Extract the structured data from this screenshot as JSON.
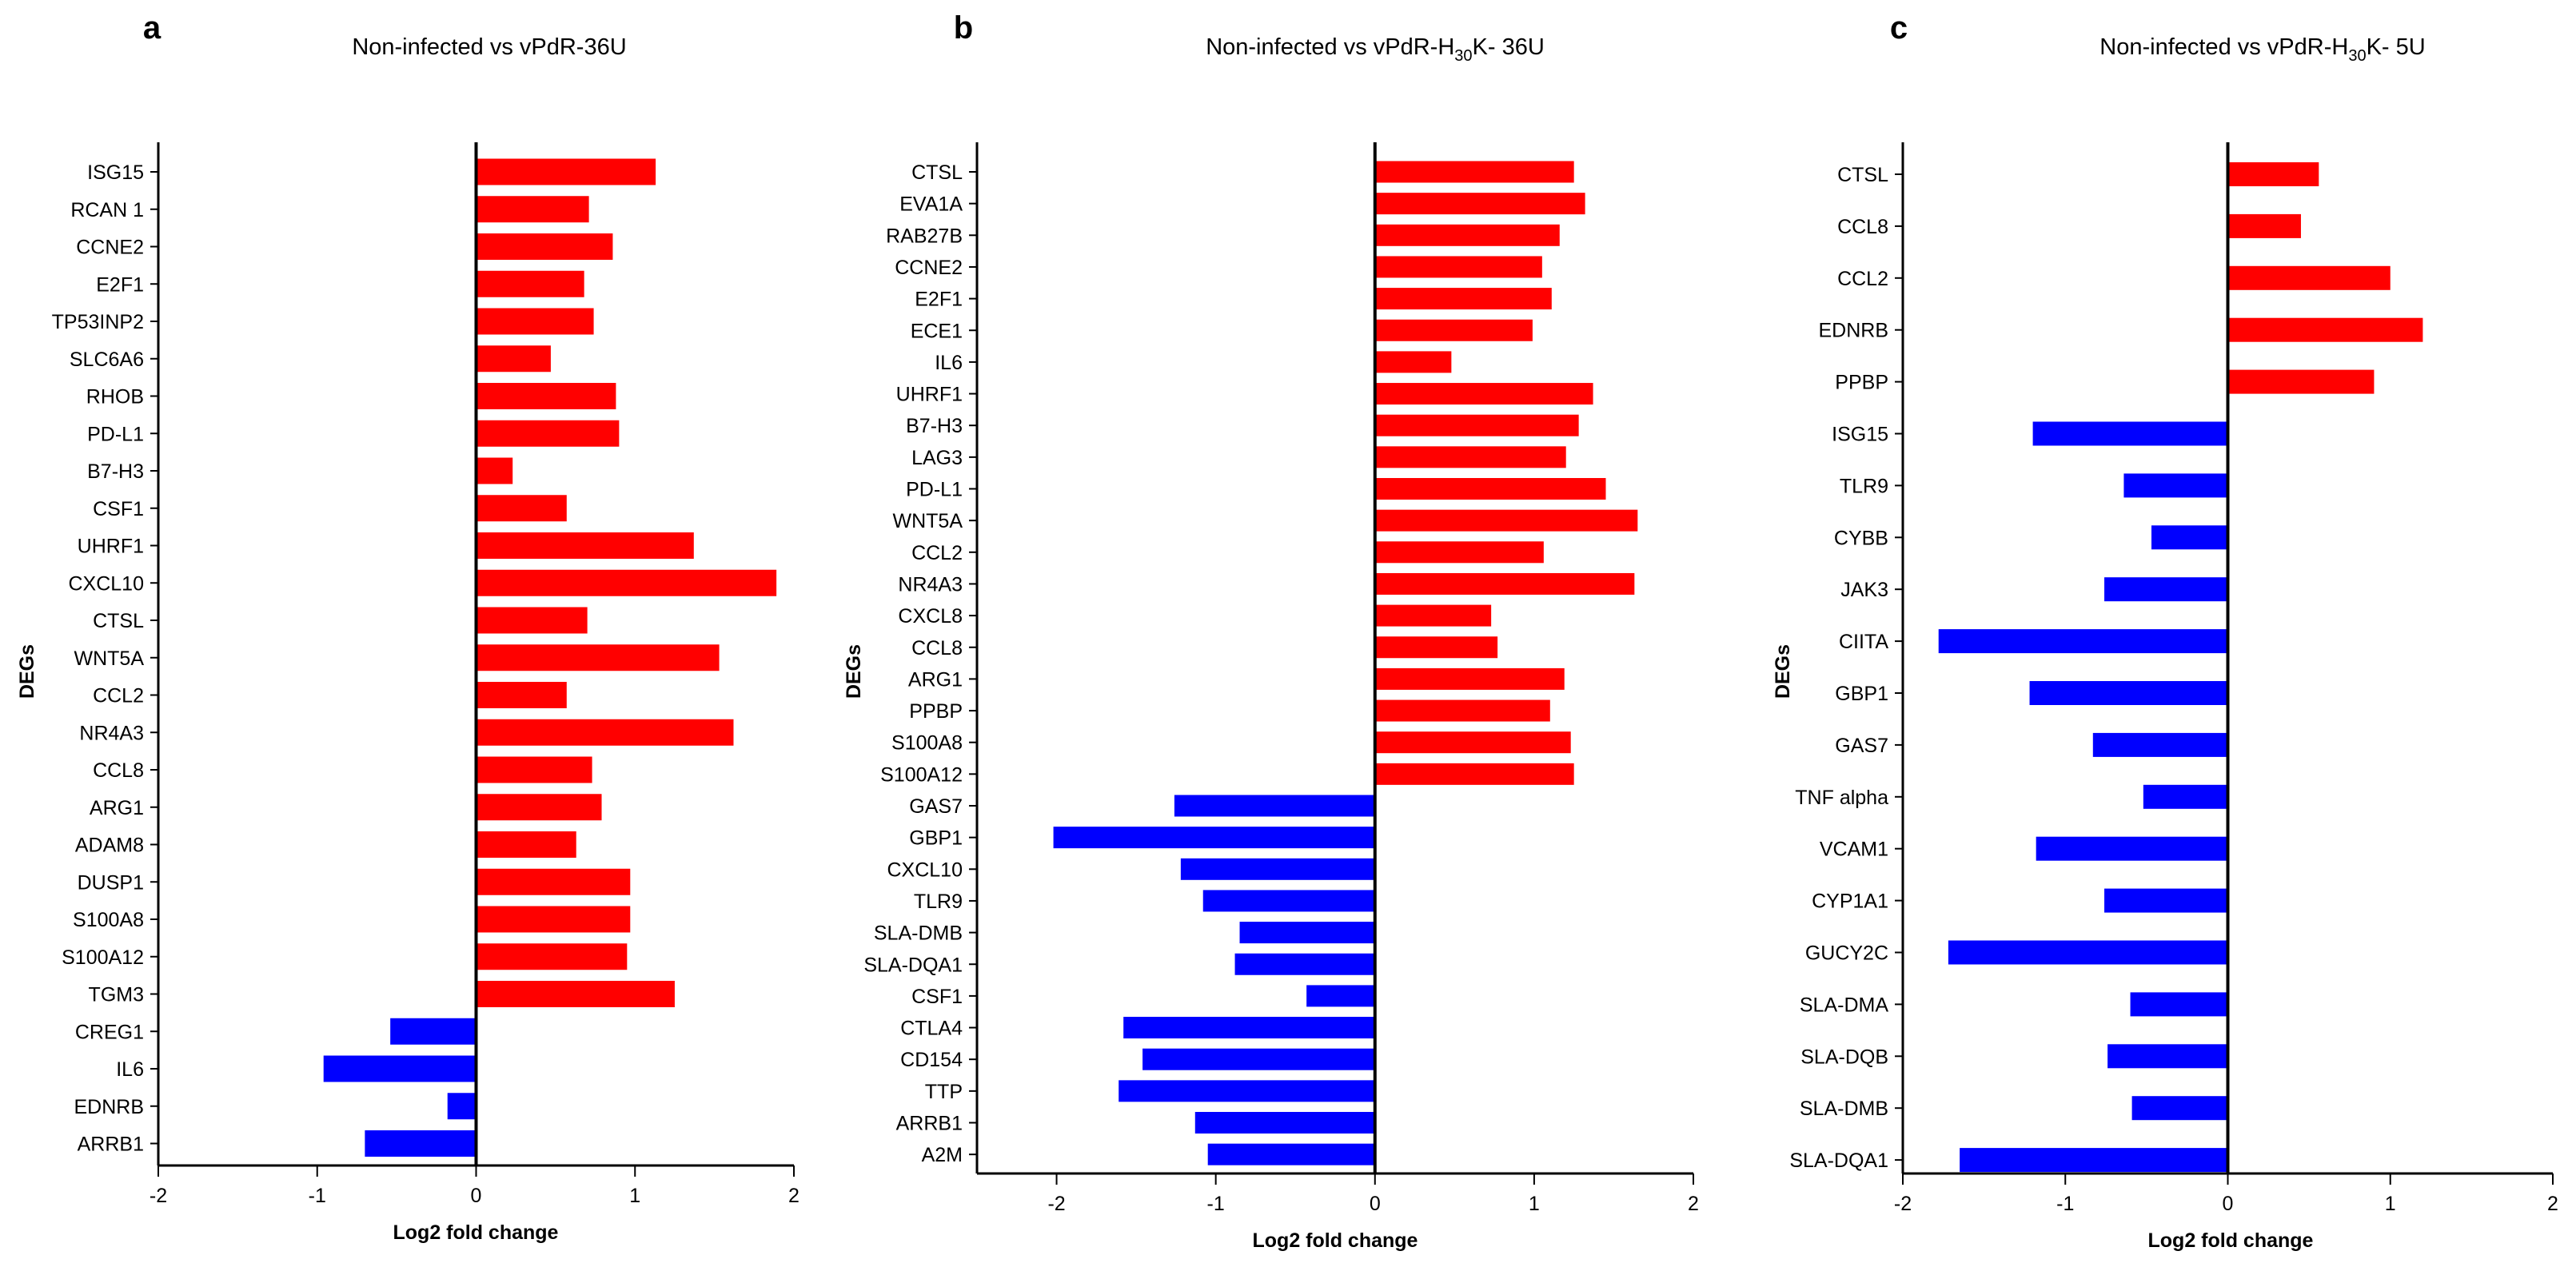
{
  "figure": {
    "panels": [
      "a",
      "b",
      "c"
    ]
  },
  "colors": {
    "positive": "#ff0000",
    "negative": "#0000ff",
    "axis": "#000000"
  },
  "chart_data": [
    {
      "type": "bar",
      "orientation": "horizontal",
      "panel_label": "a",
      "title": "Non-infected vs vPdR-36U",
      "xlabel": "Log2 fold change",
      "ylabel": "DEGs",
      "xlim": [
        -2,
        2
      ],
      "xticks": [
        -2,
        -1,
        0,
        1,
        2
      ],
      "grid": false,
      "categories": [
        "ISG15",
        "RCAN 1",
        "CCNE2",
        "E2F1",
        "TP53INP2",
        "SLC6A6",
        "RHOB",
        "PD-L1",
        "B7-H3",
        "CSF1",
        "UHRF1",
        "CXCL10",
        "CTSL",
        "WNT5A",
        "CCL2",
        "NR4A3",
        "CCL8",
        "ARG1",
        "ADAM8",
        "DUSP1",
        "S100A8",
        "S100A12",
        "TGM3",
        "CREG1",
        "IL6",
        "EDNRB",
        "ARRB1"
      ],
      "values": [
        1.13,
        0.71,
        0.86,
        0.68,
        0.74,
        0.47,
        0.88,
        0.9,
        0.23,
        0.57,
        1.37,
        1.89,
        0.7,
        1.53,
        0.57,
        1.62,
        0.73,
        0.79,
        0.63,
        0.97,
        0.97,
        0.95,
        1.25,
        -0.54,
        -0.96,
        -0.18,
        -0.7
      ]
    },
    {
      "type": "bar",
      "orientation": "horizontal",
      "panel_label": "b",
      "title_parts": [
        "Non-infected vs vPdR-H",
        "30",
        "K- 36U"
      ],
      "xlabel": "Log2 fold change",
      "ylabel": "DEGs",
      "xlim": [
        -2.5,
        2
      ],
      "xticks": [
        -2,
        -1,
        0,
        1,
        2
      ],
      "grid": false,
      "categories": [
        "CTSL",
        "EVA1A",
        "RAB27B",
        "CCNE2",
        "E2F1",
        "ECE1",
        "IL6",
        "UHRF1",
        "B7-H3",
        "LAG3",
        "PD-L1",
        "WNT5A",
        "CCL2",
        "NR4A3",
        "CXCL8",
        "CCL8",
        "ARG1",
        "PPBP",
        "S100A8",
        "S100A12",
        "GAS7",
        "GBP1",
        "CXCL10",
        "TLR9",
        "SLA-DMB",
        "SLA-DQA1",
        "CSF1",
        "CTLA4",
        "CD154",
        "TTP",
        "ARRB1",
        "A2M"
      ],
      "values": [
        1.25,
        1.32,
        1.16,
        1.05,
        1.11,
        0.99,
        0.48,
        1.37,
        1.28,
        1.2,
        1.45,
        1.65,
        1.06,
        1.63,
        0.73,
        0.77,
        1.19,
        1.1,
        1.23,
        1.25,
        -1.26,
        -2.02,
        -1.22,
        -1.08,
        -0.85,
        -0.88,
        -0.43,
        -1.58,
        -1.46,
        -1.61,
        -1.13,
        -1.05
      ]
    },
    {
      "type": "bar",
      "orientation": "horizontal",
      "panel_label": "c",
      "title_parts": [
        "Non-infected vs vPdR-H",
        "30",
        "K- 5U"
      ],
      "xlabel": "Log2 fold change",
      "ylabel": "DEGs",
      "xlim": [
        -2,
        2
      ],
      "xticks": [
        -2,
        -1,
        0,
        1,
        2
      ],
      "grid": false,
      "categories": [
        "CTSL",
        "CCL8",
        "CCL2",
        "EDNRB",
        "PPBP",
        "ISG15",
        "TLR9",
        "CYBB",
        "JAK3",
        "CIITA",
        "GBP1",
        "GAS7",
        "TNF alpha",
        "VCAM1",
        "CYP1A1",
        "GUCY2C",
        "SLA-DMA",
        "SLA-DQB",
        "SLA-DMB",
        "SLA-DQA1"
      ],
      "values": [
        0.56,
        0.45,
        1.0,
        1.2,
        0.9,
        -1.2,
        -0.64,
        -0.47,
        -0.76,
        -1.78,
        -1.22,
        -0.83,
        -0.52,
        -1.18,
        -0.76,
        -1.72,
        -0.6,
        -0.74,
        -0.59,
        -1.65
      ]
    }
  ]
}
